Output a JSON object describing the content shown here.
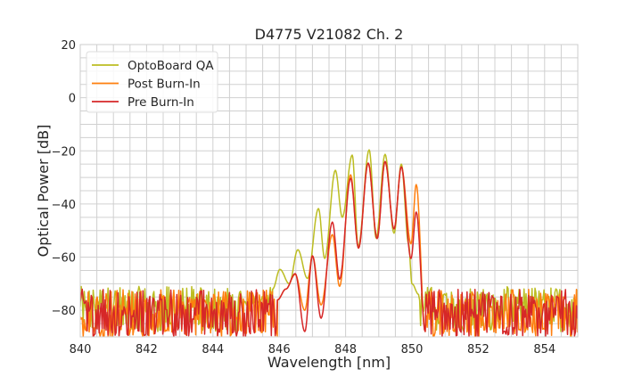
{
  "chart_data": {
    "type": "line",
    "title": "D4775 V21082 Ch. 2",
    "xlabel": "Wavelength [nm]",
    "ylabel": "Optical Power [dB]",
    "xlim": [
      840,
      855
    ],
    "ylim": [
      -90,
      20
    ],
    "xticks": [
      840,
      842,
      844,
      846,
      848,
      850,
      852,
      854
    ],
    "yticks": [
      20,
      0,
      -20,
      -40,
      -60,
      -80
    ],
    "xtick_labels": [
      "840",
      "842",
      "844",
      "846",
      "848",
      "850",
      "852",
      "854"
    ],
    "ytick_labels": [
      "20",
      "0",
      "−20",
      "−40",
      "−60",
      "−80"
    ],
    "grid": true,
    "legend_position": "top-left",
    "series": [
      {
        "name": "OptoBoard QA",
        "color": "#bcbd22",
        "noise_floor": [
          -88,
          -71
        ],
        "x": [
          845.8,
          846.02,
          846.3,
          846.56,
          846.85,
          847.18,
          847.37,
          847.69,
          847.9,
          848.2,
          848.38,
          848.71,
          848.92,
          849.19,
          849.46,
          849.68,
          849.9,
          850.0,
          850.2
        ],
        "y": [
          -72,
          -64.6,
          -70,
          -57.2,
          -68,
          -41.7,
          -60.5,
          -27.3,
          -45,
          -21.6,
          -56,
          -19.6,
          -52.8,
          -21.3,
          -51,
          -25,
          -55,
          -70,
          -74
        ]
      },
      {
        "name": "Post Burn-In",
        "color": "#ff7f0e",
        "noise_floor": [
          -90,
          -72
        ],
        "x": [
          845.95,
          846.2,
          846.48,
          846.77,
          847.0,
          847.26,
          847.6,
          847.82,
          848.15,
          848.39,
          848.68,
          848.95,
          849.19,
          849.46,
          849.68,
          849.97,
          850.13,
          850.4
        ],
        "y": [
          -76,
          -72,
          -66.5,
          -80,
          -59.5,
          -78,
          -51.5,
          -71,
          -29,
          -56.6,
          -24.6,
          -53,
          -24,
          -49.4,
          -26,
          -55,
          -32.7,
          -88
        ]
      },
      {
        "name": "Pre Burn-In",
        "color": "#d62728",
        "noise_floor": [
          -90,
          -72
        ],
        "x": [
          845.95,
          846.2,
          846.48,
          846.77,
          847.0,
          847.26,
          847.6,
          847.82,
          848.15,
          848.39,
          848.68,
          848.95,
          849.19,
          849.46,
          849.68,
          849.97,
          850.13,
          850.4
        ],
        "y": [
          -76,
          -72,
          -66.2,
          -88,
          -59.5,
          -83,
          -46.8,
          -68.3,
          -30.3,
          -56.6,
          -24.6,
          -53,
          -24,
          -49.4,
          -26,
          -60.5,
          -43,
          -88
        ]
      }
    ]
  }
}
